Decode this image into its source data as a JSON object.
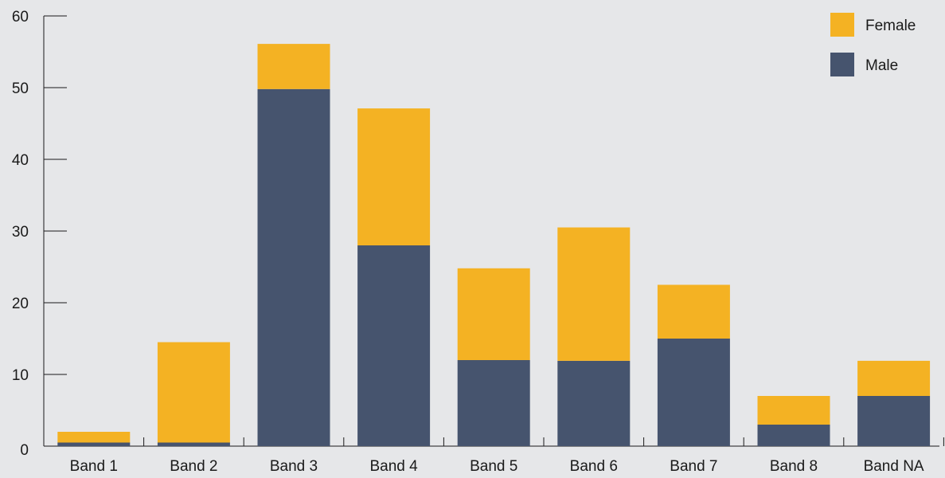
{
  "chart_data": {
    "type": "bar",
    "stacked": true,
    "categories": [
      "Band 1",
      "Band 2",
      "Band 3",
      "Band 4",
      "Band 5",
      "Band 6",
      "Band 7",
      "Band 8",
      "Band NA"
    ],
    "series": [
      {
        "name": "Male",
        "color": "#46546e",
        "values": [
          0.5,
          0.5,
          49.8,
          28,
          12,
          11.9,
          15,
          3,
          7
        ]
      },
      {
        "name": "Female",
        "color": "#f4b223",
        "values": [
          1.5,
          14,
          6.3,
          19.1,
          12.8,
          18.6,
          7.5,
          4,
          4.9
        ]
      }
    ],
    "yticks": [
      "0",
      "10",
      "20",
      "30",
      "40",
      "50",
      "60"
    ],
    "ylim": [
      0,
      60
    ],
    "title": "",
    "xlabel": "",
    "ylabel": "",
    "grid": false,
    "legend_position": "top-right",
    "legend_order": [
      "Female",
      "Male"
    ]
  }
}
